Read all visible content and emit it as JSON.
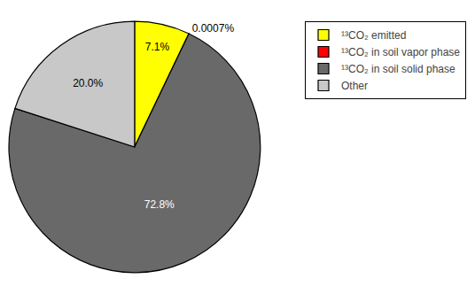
{
  "chart_data": {
    "type": "pie",
    "categories": [
      "¹³CO₂ emitted",
      "¹³CO₂ in soil vapor phase",
      "¹³CO₂ in soil solid phase",
      "Other"
    ],
    "values": [
      7.1,
      0.0007,
      72.8,
      20.0
    ],
    "value_labels": [
      "7.1%",
      "0.0007%",
      "72.8%",
      "20.0%"
    ],
    "colors": [
      "#ffff00",
      "#ff0000",
      "#696969",
      "#c8c8c8"
    ],
    "data_labels": true,
    "legend": "upper right"
  }
}
